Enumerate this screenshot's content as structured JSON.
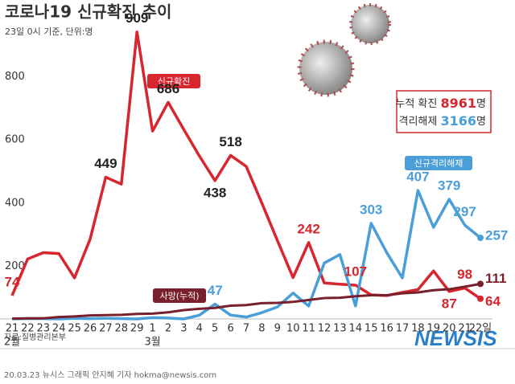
{
  "chart_data": {
    "type": "line",
    "title": "코로나19 신규확진 추이",
    "subtitle": "23일 0시 기준, 단위:명",
    "categories": [
      "21",
      "22",
      "23",
      "24",
      "25",
      "26",
      "27",
      "28",
      "29",
      "1",
      "2",
      "3",
      "4",
      "5",
      "6",
      "7",
      "8",
      "9",
      "10",
      "11",
      "12",
      "13",
      "14",
      "15",
      "16",
      "17",
      "18",
      "19",
      "20",
      "21",
      "22일"
    ],
    "group_labels": [
      "2월",
      "3월"
    ],
    "ylim": [
      0,
      1000
    ],
    "yticks": [
      200,
      400,
      600,
      800
    ],
    "grid": false,
    "series": [
      {
        "name": "신규확진",
        "color": "#d8262e",
        "values": [
          74,
          190,
          210,
          207,
          130,
          253,
          449,
          427,
          909,
          595,
          686,
          600,
          516,
          438,
          518,
          483,
          367,
          248,
          131,
          242,
          114,
          110,
          107,
          76,
          74,
          84,
          93,
          152,
          87,
          98,
          64
        ],
        "labeled_points": [
          0,
          6,
          8,
          10,
          13,
          14,
          19,
          22,
          28,
          29,
          30
        ]
      },
      {
        "name": "신규격리해제",
        "color": "#4a9fd8",
        "values": [
          0,
          1,
          1,
          0,
          2,
          1,
          2,
          1,
          0,
          4,
          3,
          0,
          12,
          47,
          12,
          6,
          20,
          38,
          82,
          41,
          177,
          204,
          41,
          303,
          210,
          130,
          407,
          290,
          379,
          297,
          257
        ],
        "labeled_points": [
          13,
          23,
          26,
          28,
          29,
          30
        ]
      },
      {
        "name": "사망(누적)",
        "color": "#7a1f2c",
        "values": [
          1,
          2,
          2,
          6,
          8,
          11,
          12,
          13,
          16,
          17,
          21,
          28,
          32,
          35,
          42,
          44,
          50,
          51,
          54,
          60,
          66,
          67,
          72,
          75,
          75,
          81,
          84,
          91,
          94,
          102,
          111
        ],
        "labeled_points": [
          30
        ]
      }
    ],
    "summary": [
      {
        "label": "누적 확진",
        "value": "8961",
        "unit": "명"
      },
      {
        "label": "격리해제",
        "value": "3166",
        "unit": "명"
      }
    ],
    "source": "자료:질병관리본부",
    "credit": "20.03.23 뉴시스 그래픽 안지혜 기자 hokma@newsis.com",
    "logo": "NEWSIS"
  }
}
